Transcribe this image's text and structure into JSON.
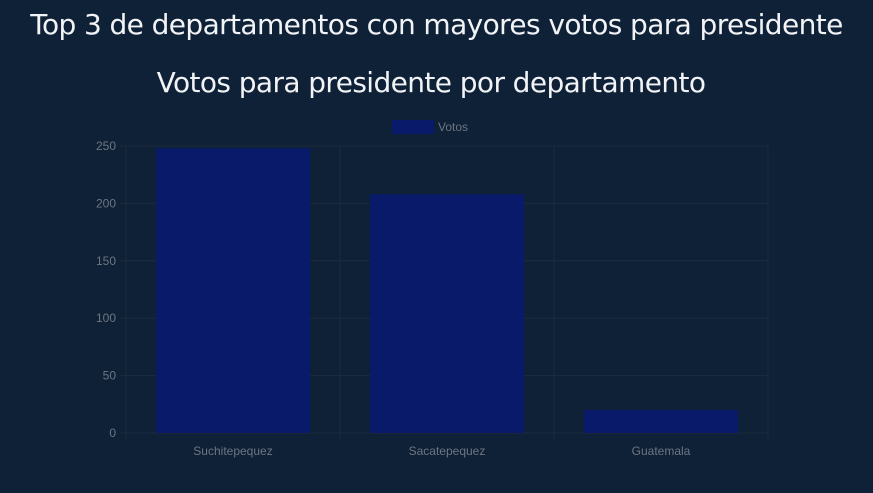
{
  "page": {
    "heading": "Top 3 de departamentos con mayores votos para presidente"
  },
  "chart_data": {
    "type": "bar",
    "title": "Votos para presidente por departamento",
    "categories": [
      "Suchitepequez",
      "Sacatepequez",
      "Guatemala"
    ],
    "series": [
      {
        "name": "Votos",
        "values": [
          248,
          208,
          20
        ]
      }
    ],
    "ylim": [
      0,
      250
    ],
    "yticks": [
      0,
      50,
      100,
      150,
      200,
      250
    ],
    "xlabel": "",
    "ylabel": "",
    "grid": true,
    "legend": "top-center",
    "colors": {
      "bar": "#0a1a6b",
      "grid": "#1b2c3e",
      "background": "#0f2136"
    }
  }
}
